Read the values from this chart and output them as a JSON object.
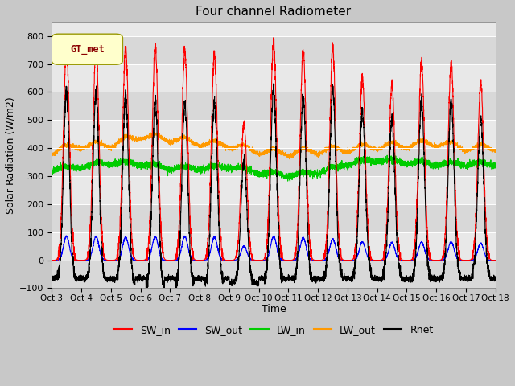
{
  "title": "Four channel Radiometer",
  "xlabel": "Time",
  "ylabel": "Solar Radiation (W/m2)",
  "ylim": [
    -100,
    850
  ],
  "yticks": [
    -100,
    0,
    100,
    200,
    300,
    400,
    500,
    600,
    700,
    800
  ],
  "x_labels": [
    "Oct 3",
    "Oct 4",
    "Oct 5",
    "Oct 6",
    "Oct 7",
    "Oct 8",
    "Oct 9",
    "Oct 10",
    "Oct 11",
    "Oct 12",
    "Oct 13",
    "Oct 14",
    "Oct 15",
    "Oct 16",
    "Oct 17",
    "Oct 18"
  ],
  "n_days": 15,
  "n_pts_per_day": 288,
  "fig_bg": "#c8c8c8",
  "plot_bg": "#e8e8e8",
  "legend_label_box": "GT_met",
  "legend_box_color": "#ffffcc",
  "legend_box_edge": "#999900",
  "sw_in_peaks": [
    760,
    755,
    760,
    760,
    745,
    738,
    490,
    780,
    750,
    755,
    655,
    625,
    705,
    705,
    630
  ],
  "sw_out_peaks": [
    85,
    85,
    82,
    85,
    85,
    83,
    50,
    85,
    80,
    75,
    65,
    63,
    65,
    65,
    60
  ],
  "lw_in_base": [
    315,
    325,
    340,
    335,
    320,
    320,
    325,
    305,
    295,
    305,
    335,
    350,
    340,
    335,
    335
  ],
  "lw_out_base": [
    375,
    395,
    400,
    430,
    420,
    405,
    398,
    375,
    370,
    378,
    383,
    393,
    398,
    405,
    388
  ],
  "night_rnet": [
    -65,
    -65,
    -65,
    -65,
    -65,
    -65,
    -80,
    -65,
    -65,
    -65,
    -65,
    -65,
    -65,
    -65,
    -65
  ],
  "lines": {
    "SW_in": {
      "color": "#ff0000",
      "lw": 0.8
    },
    "SW_out": {
      "color": "#0000ff",
      "lw": 0.8
    },
    "LW_in": {
      "color": "#00cc00",
      "lw": 0.8
    },
    "LW_out": {
      "color": "#ff9900",
      "lw": 0.8
    },
    "Rnet": {
      "color": "#000000",
      "lw": 0.8
    }
  }
}
